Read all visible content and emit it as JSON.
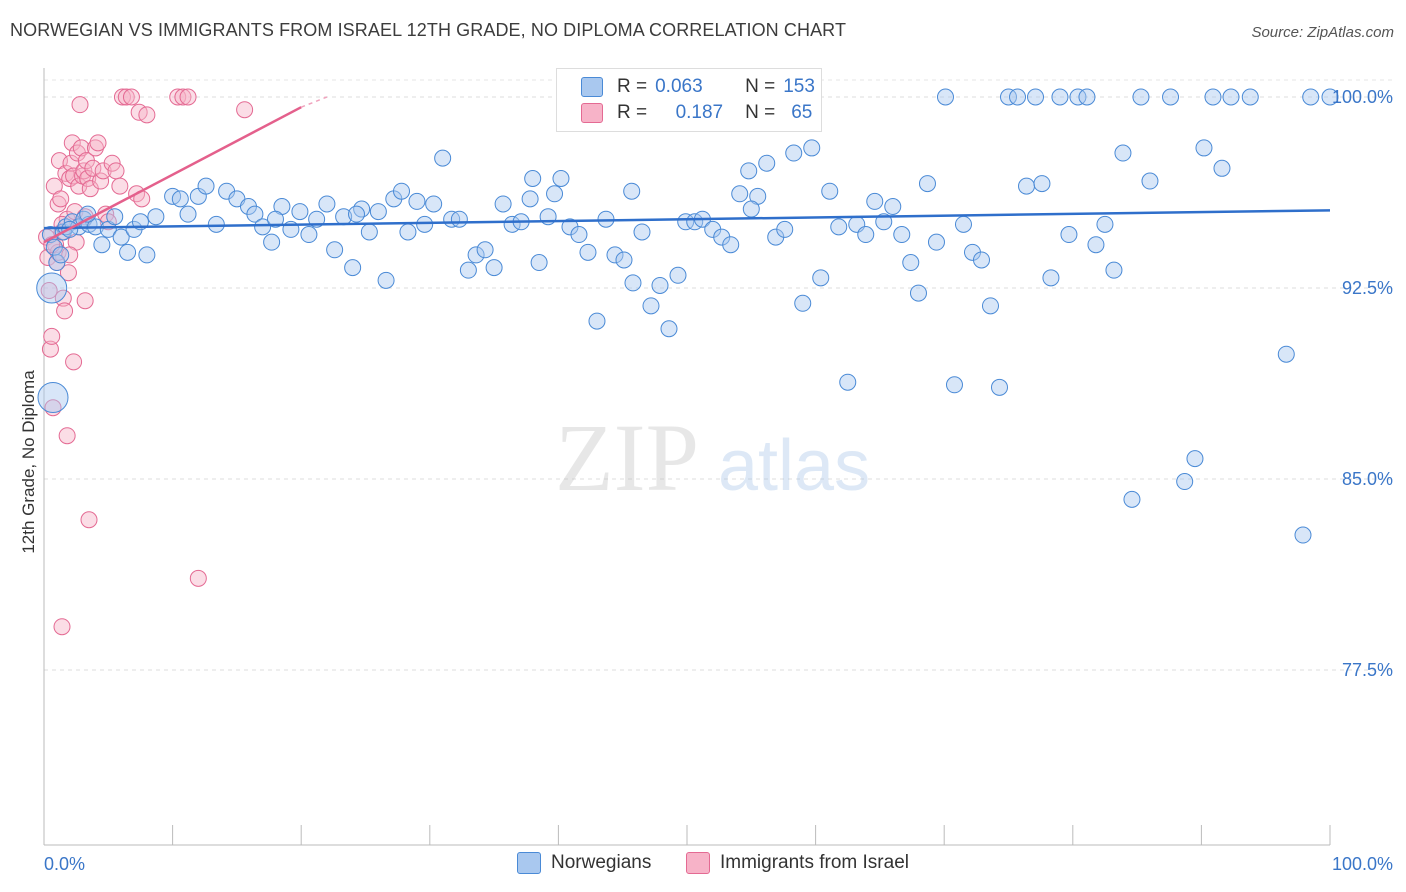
{
  "title": "NORWEGIAN VS IMMIGRANTS FROM ISRAEL 12TH GRADE, NO DIPLOMA CORRELATION CHART",
  "source": "Source: ZipAtlas.com",
  "watermark": {
    "zip": "ZIP",
    "atlas": "atlas"
  },
  "legend": [
    {
      "name": "Norwegians",
      "color_fill": "#a9c8ef",
      "color_stroke": "#4a8ad6",
      "r_label": "R =",
      "r_value": "0.063",
      "n_label": "N =",
      "n_value": "153"
    },
    {
      "name": "Immigrants from Israel",
      "color_fill": "#f7b3c8",
      "color_stroke": "#e46a93",
      "r_label": "R =",
      "r_value": "0.187",
      "n_label": "N =",
      "n_value": "65"
    }
  ],
  "chart_data": {
    "type": "scatter",
    "title": "NORWEGIAN VS IMMIGRANTS FROM ISRAEL 12TH GRADE, NO DIPLOMA CORRELATION CHART",
    "xlabel": "",
    "ylabel": "12th Grade, No Diploma",
    "xlim": [
      0,
      100
    ],
    "ylim": [
      70.0,
      100.9
    ],
    "x_tick_labels": [
      "0.0%",
      "100.0%"
    ],
    "y_ticks": [
      100.0,
      92.5,
      85.0,
      77.5
    ],
    "y_tick_labels": [
      "100.0%",
      "92.5%",
      "85.0%",
      "77.5%"
    ],
    "grid": true,
    "series": [
      {
        "name": "Norwegians",
        "color": "#4a8ad6",
        "trend": {
          "x": [
            0,
            100
          ],
          "y": [
            94.85,
            95.55
          ]
        },
        "points": [
          [
            0.5,
            94.6
          ],
          [
            0.6,
            92.5
          ],
          [
            0.7,
            88.2
          ],
          [
            1.0,
            93.5
          ],
          [
            1.5,
            94.7
          ],
          [
            1.7,
            94.9
          ],
          [
            2.2,
            95.1
          ],
          [
            2.7,
            94.9
          ],
          [
            3.1,
            95.2
          ],
          [
            3.5,
            95.0
          ],
          [
            4.0,
            94.9
          ],
          [
            4.5,
            94.2
          ],
          [
            5.0,
            94.8
          ],
          [
            5.5,
            95.3
          ],
          [
            6.0,
            94.5
          ],
          [
            6.5,
            93.9
          ],
          [
            7.0,
            94.8
          ],
          [
            7.5,
            95.1
          ],
          [
            8.0,
            93.8
          ],
          [
            8.7,
            95.3
          ],
          [
            10.0,
            96.1
          ],
          [
            10.6,
            96.0
          ],
          [
            11.2,
            95.4
          ],
          [
            12.0,
            96.1
          ],
          [
            12.6,
            96.5
          ],
          [
            13.4,
            95.0
          ],
          [
            14.2,
            96.3
          ],
          [
            15.0,
            96.0
          ],
          [
            15.9,
            95.7
          ],
          [
            16.4,
            95.4
          ],
          [
            17.0,
            94.9
          ],
          [
            17.7,
            94.3
          ],
          [
            18.5,
            95.7
          ],
          [
            19.2,
            94.8
          ],
          [
            19.9,
            95.5
          ],
          [
            20.6,
            94.6
          ],
          [
            21.2,
            95.2
          ],
          [
            22.0,
            95.8
          ],
          [
            22.6,
            94.0
          ],
          [
            23.3,
            95.3
          ],
          [
            24.0,
            93.3
          ],
          [
            24.7,
            95.6
          ],
          [
            25.3,
            94.7
          ],
          [
            26.0,
            95.5
          ],
          [
            26.6,
            92.8
          ],
          [
            27.2,
            96.0
          ],
          [
            27.8,
            96.3
          ],
          [
            28.3,
            94.7
          ],
          [
            29.0,
            95.9
          ],
          [
            29.6,
            95.0
          ],
          [
            30.3,
            95.8
          ],
          [
            31.0,
            97.6
          ],
          [
            31.7,
            95.2
          ],
          [
            32.3,
            95.2
          ],
          [
            33.0,
            93.2
          ],
          [
            33.6,
            93.8
          ],
          [
            34.3,
            94.0
          ],
          [
            35.0,
            93.3
          ],
          [
            35.7,
            95.8
          ],
          [
            36.4,
            95.0
          ],
          [
            37.1,
            95.1
          ],
          [
            37.8,
            96.0
          ],
          [
            38.5,
            93.5
          ],
          [
            39.2,
            95.3
          ],
          [
            39.7,
            96.2
          ],
          [
            40.2,
            96.8
          ],
          [
            40.9,
            94.9
          ],
          [
            41.6,
            94.6
          ],
          [
            42.3,
            93.9
          ],
          [
            43.0,
            91.2
          ],
          [
            43.7,
            95.2
          ],
          [
            44.4,
            93.8
          ],
          [
            45.1,
            93.6
          ],
          [
            45.8,
            92.7
          ],
          [
            46.5,
            94.7
          ],
          [
            47.2,
            91.8
          ],
          [
            47.9,
            92.6
          ],
          [
            48.6,
            90.9
          ],
          [
            49.3,
            93.0
          ],
          [
            49.9,
            95.1
          ],
          [
            50.6,
            95.1
          ],
          [
            51.2,
            95.2
          ],
          [
            52.0,
            94.8
          ],
          [
            52.7,
            94.5
          ],
          [
            53.4,
            94.2
          ],
          [
            54.1,
            96.2
          ],
          [
            54.8,
            97.1
          ],
          [
            55.5,
            96.1
          ],
          [
            56.2,
            97.4
          ],
          [
            56.9,
            94.5
          ],
          [
            57.6,
            94.8
          ],
          [
            58.3,
            97.8
          ],
          [
            59.0,
            91.9
          ],
          [
            59.7,
            98.0
          ],
          [
            60.4,
            92.9
          ],
          [
            61.1,
            96.3
          ],
          [
            61.8,
            94.9
          ],
          [
            62.5,
            88.8
          ],
          [
            63.2,
            95.0
          ],
          [
            63.9,
            94.6
          ],
          [
            64.6,
            95.9
          ],
          [
            65.3,
            95.1
          ],
          [
            66.0,
            95.7
          ],
          [
            66.7,
            94.6
          ],
          [
            67.4,
            93.5
          ],
          [
            68.0,
            92.3
          ],
          [
            68.7,
            96.6
          ],
          [
            69.4,
            94.3
          ],
          [
            70.1,
            100.0
          ],
          [
            70.8,
            88.7
          ],
          [
            71.5,
            95.0
          ],
          [
            72.2,
            93.9
          ],
          [
            72.9,
            93.6
          ],
          [
            73.6,
            91.8
          ],
          [
            74.3,
            88.6
          ],
          [
            75.0,
            100.0
          ],
          [
            75.7,
            100.0
          ],
          [
            76.4,
            96.5
          ],
          [
            77.1,
            100.0
          ],
          [
            77.6,
            96.6
          ],
          [
            78.3,
            92.9
          ],
          [
            79.0,
            100.0
          ],
          [
            79.7,
            94.6
          ],
          [
            80.4,
            100.0
          ],
          [
            81.1,
            100.0
          ],
          [
            81.8,
            94.2
          ],
          [
            82.5,
            95.0
          ],
          [
            83.2,
            93.2
          ],
          [
            83.9,
            97.8
          ],
          [
            84.6,
            84.2
          ],
          [
            85.3,
            100.0
          ],
          [
            86.0,
            96.7
          ],
          [
            87.6,
            100.0
          ],
          [
            88.7,
            84.9
          ],
          [
            89.5,
            85.8
          ],
          [
            90.2,
            98.0
          ],
          [
            90.9,
            100.0
          ],
          [
            91.6,
            97.2
          ],
          [
            92.3,
            100.0
          ],
          [
            93.8,
            100.0
          ],
          [
            96.6,
            89.9
          ],
          [
            97.9,
            82.8
          ],
          [
            98.5,
            100.0
          ],
          [
            100.0,
            100.0
          ],
          [
            0.8,
            94.1
          ],
          [
            1.3,
            93.8
          ],
          [
            2.0,
            94.8
          ],
          [
            3.4,
            95.4
          ],
          [
            45.7,
            96.3
          ],
          [
            55.0,
            95.6
          ],
          [
            24.3,
            95.4
          ],
          [
            38.0,
            96.8
          ],
          [
            18.0,
            95.2
          ]
        ]
      },
      {
        "name": "Immigrants from Israel",
        "color": "#e46a93",
        "trend": {
          "x": [
            0,
            20
          ],
          "y": [
            94.3,
            99.6
          ]
        },
        "trend_dashed": {
          "x": [
            20,
            22
          ],
          "y": [
            99.6,
            100.0
          ]
        },
        "points": [
          [
            0.2,
            94.5
          ],
          [
            0.3,
            93.7
          ],
          [
            0.4,
            92.4
          ],
          [
            0.5,
            90.1
          ],
          [
            0.6,
            90.6
          ],
          [
            0.7,
            87.8
          ],
          [
            0.8,
            96.5
          ],
          [
            0.9,
            94.2
          ],
          [
            1.0,
            93.5
          ],
          [
            1.1,
            95.8
          ],
          [
            1.2,
            97.5
          ],
          [
            1.3,
            96.0
          ],
          [
            1.4,
            94.7
          ],
          [
            1.5,
            92.1
          ],
          [
            1.6,
            91.6
          ],
          [
            1.7,
            97.0
          ],
          [
            1.8,
            95.2
          ],
          [
            1.9,
            93.1
          ],
          [
            2.0,
            96.8
          ],
          [
            2.1,
            97.4
          ],
          [
            2.2,
            98.2
          ],
          [
            2.3,
            96.9
          ],
          [
            2.4,
            95.5
          ],
          [
            2.5,
            94.3
          ],
          [
            2.6,
            97.8
          ],
          [
            2.7,
            96.5
          ],
          [
            2.8,
            99.7
          ],
          [
            2.9,
            98.0
          ],
          [
            3.0,
            96.9
          ],
          [
            3.1,
            97.1
          ],
          [
            3.2,
            95.3
          ],
          [
            3.3,
            97.5
          ],
          [
            3.4,
            96.8
          ],
          [
            3.6,
            96.4
          ],
          [
            3.8,
            97.2
          ],
          [
            4.0,
            98.0
          ],
          [
            4.2,
            98.2
          ],
          [
            4.4,
            96.7
          ],
          [
            4.6,
            97.1
          ],
          [
            4.8,
            95.4
          ],
          [
            5.0,
            95.1
          ],
          [
            5.3,
            97.4
          ],
          [
            5.6,
            97.1
          ],
          [
            5.9,
            96.5
          ],
          [
            6.1,
            100.0
          ],
          [
            6.4,
            100.0
          ],
          [
            6.8,
            100.0
          ],
          [
            7.2,
            96.2
          ],
          [
            7.4,
            99.4
          ],
          [
            7.6,
            96.0
          ],
          [
            8.0,
            99.3
          ],
          [
            10.4,
            100.0
          ],
          [
            10.8,
            100.0
          ],
          [
            11.2,
            100.0
          ],
          [
            15.6,
            99.5
          ],
          [
            1.1,
            93.9
          ],
          [
            1.4,
            95.0
          ],
          [
            2.0,
            93.8
          ],
          [
            2.3,
            89.6
          ],
          [
            3.2,
            92.0
          ],
          [
            3.5,
            83.4
          ],
          [
            1.4,
            79.2
          ],
          [
            12.0,
            81.1
          ],
          [
            1.8,
            86.7
          ],
          [
            0.6,
            94.2
          ]
        ]
      }
    ]
  }
}
